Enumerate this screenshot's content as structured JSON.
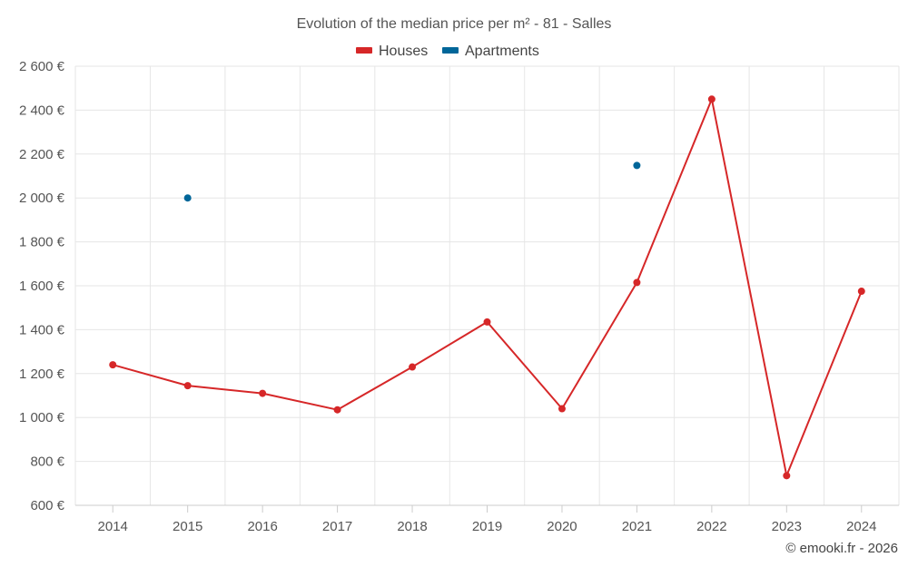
{
  "chart_data": {
    "type": "line",
    "title": "Evolution of the median price per m² - 81 - Salles",
    "categories": [
      "2014",
      "2015",
      "2016",
      "2017",
      "2018",
      "2019",
      "2020",
      "2021",
      "2022",
      "2023",
      "2024"
    ],
    "y_tick_labels": [
      "600 €",
      "800 €",
      "1 000 €",
      "1 200 €",
      "1 400 €",
      "1 600 €",
      "1 800 €",
      "2 000 €",
      "2 200 €",
      "2 400 €",
      "2 600 €"
    ],
    "ylim": [
      600,
      2600
    ],
    "y_ticks": [
      600,
      800,
      1000,
      1200,
      1400,
      1600,
      1800,
      2000,
      2200,
      2400,
      2600
    ],
    "grid": true,
    "legend_position": "top-center",
    "series": [
      {
        "name": "Houses",
        "color": "#d62728",
        "line": true,
        "values": [
          1240,
          1145,
          1110,
          1035,
          1230,
          1435,
          1040,
          1615,
          2450,
          735,
          1575
        ]
      },
      {
        "name": "Apartments",
        "color": "#006699",
        "line": false,
        "values": [
          null,
          2000,
          null,
          null,
          null,
          null,
          null,
          2148,
          null,
          null,
          null
        ]
      }
    ]
  },
  "credit": "© emooki.fr - 2026"
}
